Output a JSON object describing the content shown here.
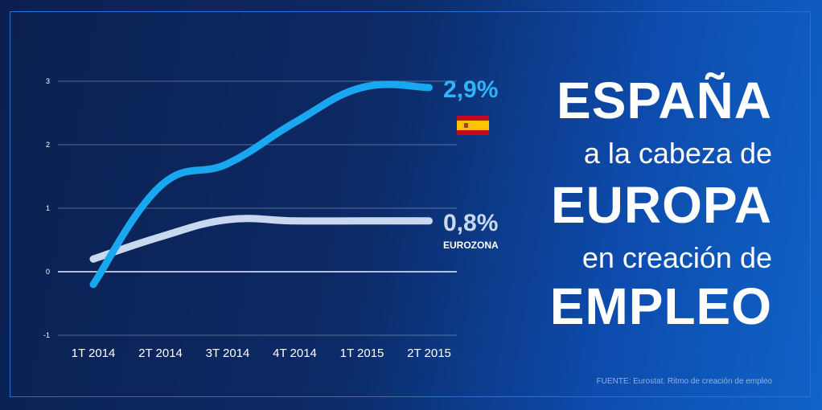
{
  "colors": {
    "spain": "#19a7ef",
    "eurozone": "#c9d8ef",
    "grid": "#c7d0e0",
    "spain_label": "#2eb4f7",
    "eurozone_label": "#c9d8ef"
  },
  "chart_data": {
    "type": "line",
    "categories": [
      "1T 2014",
      "2T 2014",
      "3T 2014",
      "4T 2014",
      "1T 2015",
      "2T 2015"
    ],
    "y_ticks": [
      3,
      2,
      1,
      0,
      -1
    ],
    "ylim": [
      -1,
      3
    ],
    "series": [
      {
        "name": "España",
        "values": [
          -0.2,
          1.35,
          1.7,
          2.35,
          2.9,
          2.9
        ],
        "end_label": "2,9%"
      },
      {
        "name": "Eurozona",
        "values": [
          0.2,
          0.55,
          0.82,
          0.8,
          0.8,
          0.8
        ],
        "end_label": "0,8%",
        "sublabel": "EUROZONA"
      }
    ],
    "title": "",
    "xlabel": "",
    "ylabel": ""
  },
  "headline": {
    "line1": "ESPAÑA",
    "line2": "a la cabeza de",
    "line3": "EUROPA",
    "line4": "en creación de",
    "line5": "EMPLEO"
  },
  "source": "FUENTE: Eurostat. Ritmo de creación de empleo",
  "flag": {
    "icon": "spain-flag-icon",
    "colors": [
      "#c60b1e",
      "#ffc400"
    ]
  }
}
